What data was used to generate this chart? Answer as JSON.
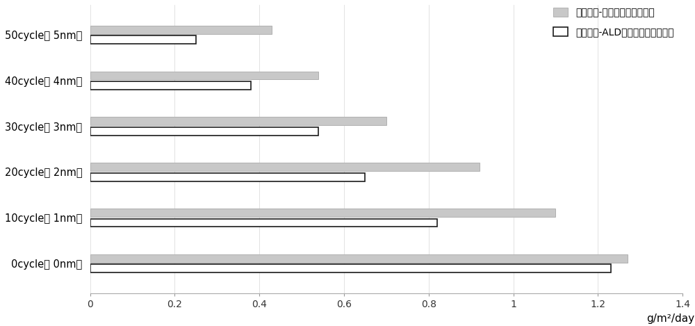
{
  "categories": [
    "0cycle（ 0nm）",
    "10cycle（ 1nm）",
    "20cycle（ 2nm）",
    "30cycle（ 3nm）",
    "40cycle（ 4nm）",
    "50cycle（ 5nm）"
  ],
  "series1_label": "纳米淠粉-氧化鐵、氧化铝混合",
  "series2_label": "纳米淠粉-ALD包覆氧化鐵、氧化铝",
  "series1_values": [
    1.27,
    1.1,
    0.92,
    0.7,
    0.54,
    0.43
  ],
  "series2_values": [
    1.23,
    0.82,
    0.65,
    0.54,
    0.38,
    0.25
  ],
  "series1_color": "#c8c8c8",
  "series2_fill_color": "#ffffff",
  "series2_edge_color": "#1a1a1a",
  "series1_edge_color": "#b0b0b0",
  "xlabel": "g/m²/day",
  "xlim": [
    0,
    1.4
  ],
  "xticks": [
    0,
    0.2,
    0.4,
    0.6,
    0.8,
    1.0,
    1.2,
    1.4
  ],
  "background_color": "#ffffff",
  "bar_height": 0.18,
  "bar_gap": 0.04,
  "figsize": [
    10.0,
    4.69
  ],
  "dpi": 100
}
